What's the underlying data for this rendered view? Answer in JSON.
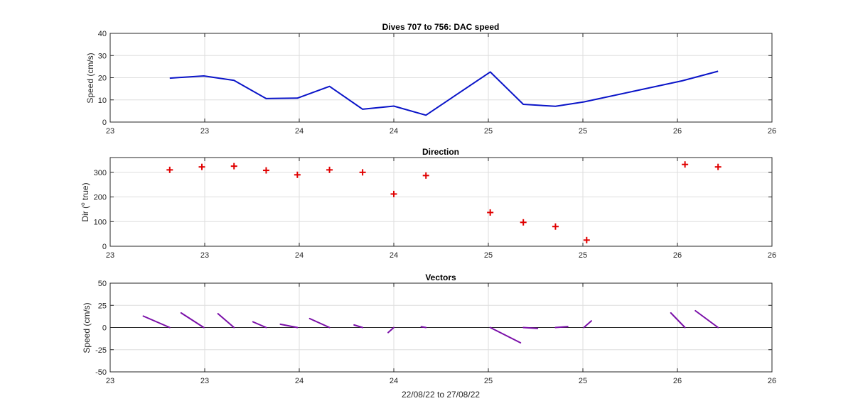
{
  "figure_background": "#ffffff",
  "chart_data": [
    {
      "type": "line",
      "title": "Dives 707 to 756: DAC speed",
      "ylabel": "Speed (cm/s)",
      "xlabel": "",
      "ylim": [
        0,
        40
      ],
      "yticks": [
        0,
        10,
        20,
        30,
        40
      ],
      "xlim": [
        0,
        7
      ],
      "xtick_labels": [
        "23",
        "23",
        "24",
        "24",
        "25",
        "25",
        "26",
        "26"
      ],
      "grid": true,
      "color": "#0a14c8",
      "series": [
        {
          "x": [
            0.63,
            0.99,
            1.31,
            1.65,
            1.98,
            2.32,
            2.67,
            3.0,
            3.34,
            4.02,
            4.37,
            4.71,
            5.01,
            6.05,
            6.43
          ],
          "values": [
            19.8,
            20.8,
            18.8,
            10.6,
            10.8,
            16.1,
            5.8,
            7.2,
            3.1,
            22.6,
            8.0,
            7.1,
            9.1,
            18.6,
            22.9
          ]
        }
      ]
    },
    {
      "type": "scatter",
      "title": "Direction",
      "ylabel": "Dir (o true)",
      "ylabel_main": "Dir (",
      "ylabel_sup": "o",
      "ylabel_rest": " true)",
      "xlabel": "",
      "ylim": [
        0,
        360
      ],
      "yticks": [
        0,
        100,
        200,
        300
      ],
      "xlim": [
        0,
        7
      ],
      "xtick_labels": [
        "23",
        "23",
        "24",
        "24",
        "25",
        "25",
        "26",
        "26"
      ],
      "grid": true,
      "marker": "+",
      "color": "#e00000",
      "series": [
        {
          "x": [
            0.63,
            0.97,
            1.31,
            1.65,
            1.98,
            2.32,
            2.67,
            3.0,
            3.34,
            4.02,
            4.37,
            4.71,
            5.04,
            6.08,
            6.43
          ],
          "values": [
            310,
            322,
            325,
            308,
            290,
            310,
            300,
            212,
            287,
            137,
            97,
            80,
            25,
            332,
            322
          ]
        }
      ]
    },
    {
      "type": "quiver",
      "title": "Vectors",
      "ylabel": "Speed (cm/s)",
      "xlabel": "22/08/22 to 27/08/22",
      "ylim": [
        -50,
        50
      ],
      "yticks": [
        -50,
        -25,
        0,
        25,
        50
      ],
      "xlim": [
        0,
        7
      ],
      "xtick_labels": [
        "23",
        "23",
        "24",
        "24",
        "25",
        "25",
        "26",
        "26"
      ],
      "grid": true,
      "zero_line": true,
      "color": "#7a0fa8",
      "vectors": [
        {
          "x": 0.63,
          "end_x": 0.35,
          "end_y": 12.9
        },
        {
          "x": 0.99,
          "end_x": 0.75,
          "end_y": 16.5
        },
        {
          "x": 1.31,
          "end_x": 1.14,
          "end_y": 15.6
        },
        {
          "x": 1.65,
          "end_x": 1.51,
          "end_y": 6.4
        },
        {
          "x": 1.98,
          "end_x": 1.8,
          "end_y": 3.7
        },
        {
          "x": 2.32,
          "end_x": 2.11,
          "end_y": 10.1
        },
        {
          "x": 2.67,
          "end_x": 2.58,
          "end_y": 2.9
        },
        {
          "x": 3.0,
          "end_x": 2.94,
          "end_y": -5.7
        },
        {
          "x": 3.34,
          "end_x": 3.29,
          "end_y": 0.9
        },
        {
          "x": 4.02,
          "end_x": 4.34,
          "end_y": -17.2
        },
        {
          "x": 4.37,
          "end_x": 4.52,
          "end_y": -1.0
        },
        {
          "x": 4.71,
          "end_x": 4.84,
          "end_y": 1.0
        },
        {
          "x": 5.01,
          "end_x": 5.09,
          "end_y": 7.5
        },
        {
          "x": 6.08,
          "end_x": 5.93,
          "end_y": 16.5
        },
        {
          "x": 6.43,
          "end_x": 6.19,
          "end_y": 18.9
        }
      ]
    }
  ]
}
